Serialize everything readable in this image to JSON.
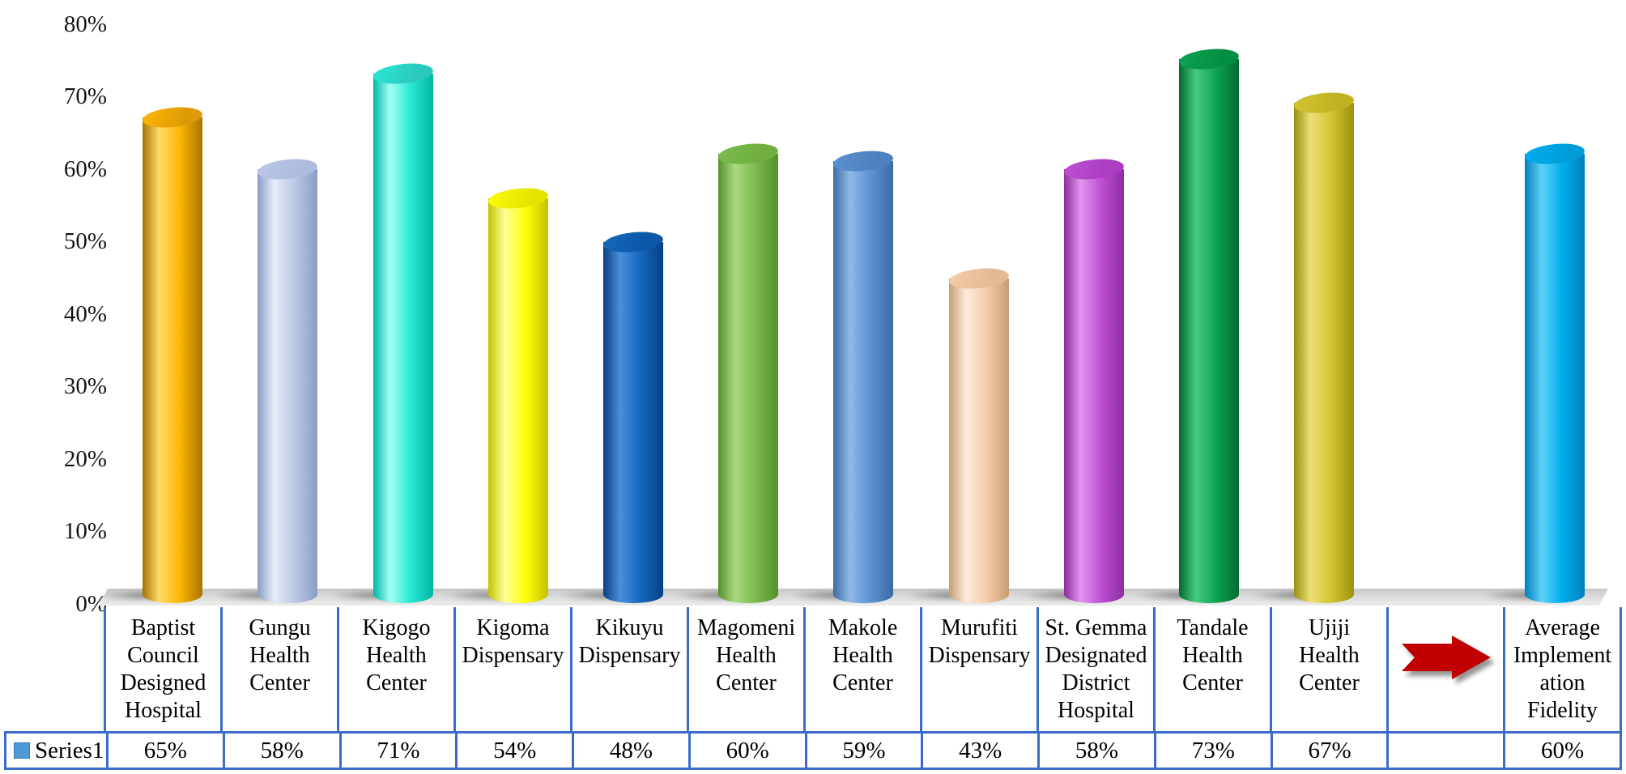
{
  "chart_data": {
    "type": "bar",
    "subtype": "3d-cylinder",
    "title": "",
    "xlabel": "",
    "ylabel": "",
    "ylim": [
      0,
      80
    ],
    "grid": false,
    "legend_position": "table-left",
    "yticks": [
      "80%",
      "70%",
      "60%",
      "50%",
      "40%",
      "30%",
      "20%",
      "10%",
      "0%"
    ],
    "categories": [
      "Baptist Council Designed Hospital",
      "Gungu Health Center",
      "Kigogo Health Center",
      "Kigoma Dispensary",
      "Kikuyu Dispensary",
      "Magomeni Health Center",
      "Makole Health Center",
      "Murufiti Dispensary",
      "St. Gemma Designated District Hospital",
      "Tandale Health Center",
      "Ujiji Health Center",
      "",
      "Average Implementation Fidelity"
    ],
    "series": [
      {
        "name": "Series1",
        "values": [
          65,
          58,
          71,
          54,
          48,
          60,
          59,
          43,
          58,
          73,
          67,
          null,
          60
        ]
      }
    ]
  },
  "table": {
    "legend_label": "Series1",
    "legend_marker_color": "#4D9AD6",
    "border_color": "#3B6CC7",
    "columns": [
      {
        "label_lines": [
          "Baptist",
          "Council",
          "Designed",
          "Hospital"
        ],
        "value": "65%"
      },
      {
        "label_lines": [
          "Gungu",
          "Health",
          "Center"
        ],
        "value": "58%"
      },
      {
        "label_lines": [
          "Kigogo",
          "Health",
          "Center"
        ],
        "value": "71%"
      },
      {
        "label_lines": [
          "Kigoma",
          "Dispensary"
        ],
        "value": "54%"
      },
      {
        "label_lines": [
          "Kikuyu",
          "Dispensary"
        ],
        "value": "48%"
      },
      {
        "label_lines": [
          "Magomeni",
          "Health",
          "Center"
        ],
        "value": "60%"
      },
      {
        "label_lines": [
          "Makole",
          "Health",
          "Center"
        ],
        "value": "59%"
      },
      {
        "label_lines": [
          "Murufiti",
          "Dispensary"
        ],
        "value": "43%"
      },
      {
        "label_lines": [
          "St. Gemma",
          "Designated",
          "District",
          "Hospital"
        ],
        "value": "58%"
      },
      {
        "label_lines": [
          "Tandale",
          "Health",
          "Center"
        ],
        "value": "73%"
      },
      {
        "label_lines": [
          "Ujiji",
          "Health",
          "Center"
        ],
        "value": "67%"
      },
      {
        "label_lines": [],
        "value": "",
        "arrow": true
      },
      {
        "label_lines": [
          "Average",
          "Implement",
          "ation",
          "Fidelity"
        ],
        "value": "60%"
      }
    ]
  },
  "bars": [
    {
      "value": 65,
      "base": "#FEB804",
      "light": "#FFDA6A",
      "dark": "#A87300",
      "cap": "#DD9A05"
    },
    {
      "value": 58,
      "base": "#BCC8E6",
      "light": "#E6ECF8",
      "dark": "#8A9CC6",
      "cap": "#ACBCDE"
    },
    {
      "value": 71,
      "base": "#29E8D4",
      "light": "#A4FFF4",
      "dark": "#00B7A3",
      "cap": "#2BC8C0"
    },
    {
      "value": 54,
      "base": "#FDFD0A",
      "light": "#FFFF96",
      "dark": "#C3C300",
      "cap": "#E3E300"
    },
    {
      "value": 48,
      "base": "#1467BE",
      "light": "#4A90DA",
      "dark": "#073F85",
      "cap": "#0D57A7"
    },
    {
      "value": 60,
      "base": "#7CBB4E",
      "light": "#A9DA7E",
      "dark": "#55912C",
      "cap": "#6FAE3F"
    },
    {
      "value": 59,
      "base": "#5C92D2",
      "light": "#8FB9E6",
      "dark": "#3A6CA4",
      "cap": "#4C80BE"
    },
    {
      "value": 43,
      "base": "#F4CDAA",
      "light": "#FCEBDB",
      "dark": "#C89C72",
      "cap": "#E3BA94"
    },
    {
      "value": 58,
      "base": "#BE50D3",
      "light": "#E095EE",
      "dark": "#8C2DA0",
      "cap": "#AB3DC2"
    },
    {
      "value": 73,
      "base": "#0DA352",
      "light": "#46CA81",
      "dark": "#016B32",
      "cap": "#048E43"
    },
    {
      "value": 67,
      "base": "#D2C532",
      "light": "#EBE075",
      "dark": "#9C9010",
      "cap": "#BFB222"
    },
    null,
    {
      "value": 60,
      "base": "#01AEEF",
      "light": "#5FD0F9",
      "dark": "#0180BC",
      "cap": "#009CD8"
    }
  ],
  "arrow": {
    "color": "#C00000"
  },
  "colors": {
    "background": "#FFFFFF",
    "text": "#000000",
    "floor": "#D9D9D9"
  }
}
